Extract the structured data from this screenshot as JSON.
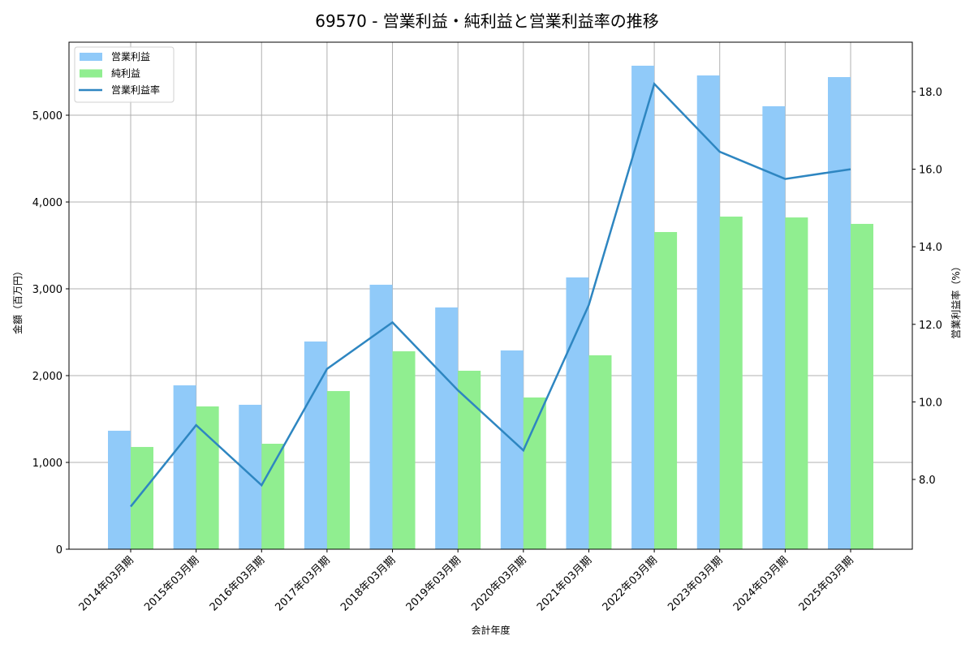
{
  "title": "69570 - 営業利益・純利益と営業利益率の推移",
  "colors": {
    "operating_profit": "#90CAF9",
    "net_profit": "#90EE90",
    "operating_margin": "#2E86C1",
    "grid": "#b0b0b0",
    "axis": "#000000"
  },
  "legend": {
    "items": [
      {
        "label": "営業利益",
        "type": "bar",
        "color": "#90CAF9"
      },
      {
        "label": "純利益",
        "type": "bar",
        "color": "#90EE90"
      },
      {
        "label": "営業利益率",
        "type": "line",
        "color": "#2E86C1"
      }
    ]
  },
  "axes": {
    "x_label": "会計年度",
    "y_left_label": "金額（百万円）",
    "y_right_label": "営業利益率（%）",
    "y_left_ticks": [
      "0",
      "1,000",
      "2,000",
      "3,000",
      "4,000",
      "5,000"
    ],
    "y_right_ticks": [
      "8.0",
      "10.0",
      "12.0",
      "14.0",
      "16.0",
      "18.0"
    ]
  },
  "chart_data": {
    "type": "bar",
    "title": "69570 - 営業利益・純利益と営業利益率の推移",
    "xlabel": "会計年度",
    "ylabel": "金額（百万円）",
    "y2label": "営業利益率（%）",
    "categories": [
      "2014年03月期",
      "2015年03月期",
      "2016年03月期",
      "2017年03月期",
      "2018年03月期",
      "2019年03月期",
      "2020年03月期",
      "2021年03月期",
      "2022年03月期",
      "2023年03月期",
      "2024年03月期",
      "2025年03月期"
    ],
    "series": [
      {
        "name": "営業利益",
        "type": "bar",
        "axis": "left",
        "color": "#90CAF9",
        "values": [
          1365,
          1888,
          1664,
          2393,
          3047,
          2785,
          2290,
          3131,
          5570,
          5458,
          5103,
          5439
        ]
      },
      {
        "name": "純利益",
        "type": "bar",
        "axis": "left",
        "color": "#90EE90",
        "values": [
          1178,
          1645,
          1215,
          1822,
          2280,
          2056,
          1748,
          2234,
          3654,
          3832,
          3822,
          3748
        ]
      },
      {
        "name": "営業利益率",
        "type": "line",
        "axis": "right",
        "color": "#2E86C1",
        "values": [
          7.3,
          9.4,
          7.85,
          10.85,
          12.05,
          10.3,
          8.75,
          12.5,
          18.2,
          16.45,
          15.75,
          16.0
        ]
      }
    ],
    "ylim": [
      0,
      5830
    ],
    "y2lim": [
      6.3,
      19.3
    ],
    "grid": true,
    "legend_position": "upper left"
  }
}
